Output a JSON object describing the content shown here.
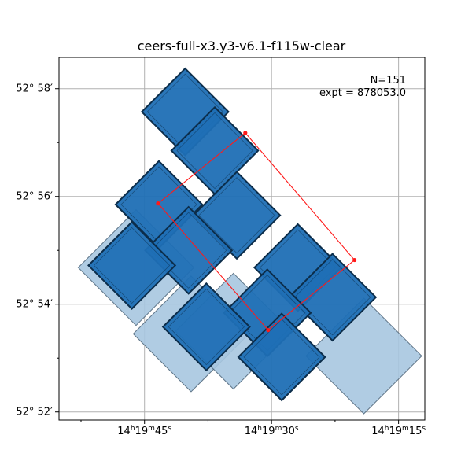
{
  "chart_data": {
    "type": "footprint",
    "title": "ceers-full-x3.y3-v6.1-f115w-clear",
    "annotation": {
      "n_text": "N=151",
      "expt_text": "expt = 878053.0"
    },
    "x_ticks": [
      {
        "label_h": "14",
        "label_m": "19",
        "label_s": "45",
        "ra_sec": 45
      },
      {
        "label_h": "14",
        "label_m": "19",
        "label_s": "30",
        "ra_sec": 30
      },
      {
        "label_h": "14",
        "label_m": "19",
        "label_s": "15",
        "ra_sec": 15
      }
    ],
    "y_ticks": [
      {
        "label": "52° 58′",
        "dec_min": 58
      },
      {
        "label": "52° 56′",
        "dec_min": 56
      },
      {
        "label": "52° 54′",
        "dec_min": 54
      },
      {
        "label": "52° 52′",
        "dec_min": 52
      }
    ],
    "xlim_ra_sec": [
      55.1,
      11.9
    ],
    "ylim_dec_min": [
      51.85,
      58.58
    ],
    "grid": true,
    "colors": {
      "dark_fill": "#1f6fb5",
      "light_fill": "#a7c6e0",
      "edge": "#0c2d4a",
      "outline": "#ff1a1a",
      "grid": "#b0b0b0"
    },
    "dark_footprints": [
      {
        "center": [
          40.2,
          57.57
        ],
        "u": [
          6.0,
          0.0
        ],
        "v": [
          0.0,
          1.05
        ]
      },
      {
        "center": [
          36.7,
          56.85
        ],
        "u": [
          6.0,
          0.0
        ],
        "v": [
          0.0,
          1.05
        ]
      },
      {
        "center": [
          43.3,
          55.85
        ],
        "u": [
          6.0,
          0.0
        ],
        "v": [
          0.0,
          1.05
        ]
      },
      {
        "center": [
          34.1,
          55.65
        ],
        "u": [
          6.0,
          0.0
        ],
        "v": [
          0.0,
          1.05
        ]
      },
      {
        "center": [
          39.8,
          55.0
        ],
        "u": [
          6.0,
          0.0
        ],
        "v": [
          0.0,
          1.05
        ]
      },
      {
        "center": [
          46.5,
          54.72
        ],
        "u": [
          6.0,
          0.0
        ],
        "v": [
          0.0,
          1.05
        ]
      },
      {
        "center": [
          26.9,
          54.68
        ],
        "u": [
          6.0,
          0.0
        ],
        "v": [
          0.0,
          1.05
        ]
      },
      {
        "center": [
          22.8,
          54.13
        ],
        "u": [
          6.0,
          0.0
        ],
        "v": [
          0.0,
          1.05
        ]
      },
      {
        "center": [
          30.5,
          53.84
        ],
        "u": [
          6.0,
          0.0
        ],
        "v": [
          0.0,
          1.05
        ]
      },
      {
        "center": [
          37.7,
          53.58
        ],
        "u": [
          6.0,
          0.0
        ],
        "v": [
          0.0,
          1.05
        ]
      },
      {
        "center": [
          28.8,
          53.02
        ],
        "u": [
          6.0,
          0.0
        ],
        "v": [
          0.0,
          1.05
        ]
      }
    ],
    "light_footprints": [
      {
        "center": [
          46.0,
          54.68
        ],
        "u": [
          7.0,
          0.0
        ],
        "v": [
          0.0,
          1.22
        ]
      },
      {
        "center": [
          39.5,
          53.45
        ],
        "u": [
          7.0,
          0.0
        ],
        "v": [
          0.0,
          1.22
        ]
      },
      {
        "center": [
          34.5,
          53.5
        ],
        "u": [
          7.0,
          0.0
        ],
        "v": [
          0.0,
          1.22
        ]
      },
      {
        "center": [
          19.1,
          53.04
        ],
        "u": [
          7.0,
          0.0
        ],
        "v": [
          0.0,
          1.22
        ]
      }
    ],
    "outline_vertices": [
      [
        43.4,
        55.87
      ],
      [
        33.1,
        57.18
      ],
      [
        20.2,
        54.82
      ],
      [
        30.4,
        53.52
      ]
    ]
  }
}
